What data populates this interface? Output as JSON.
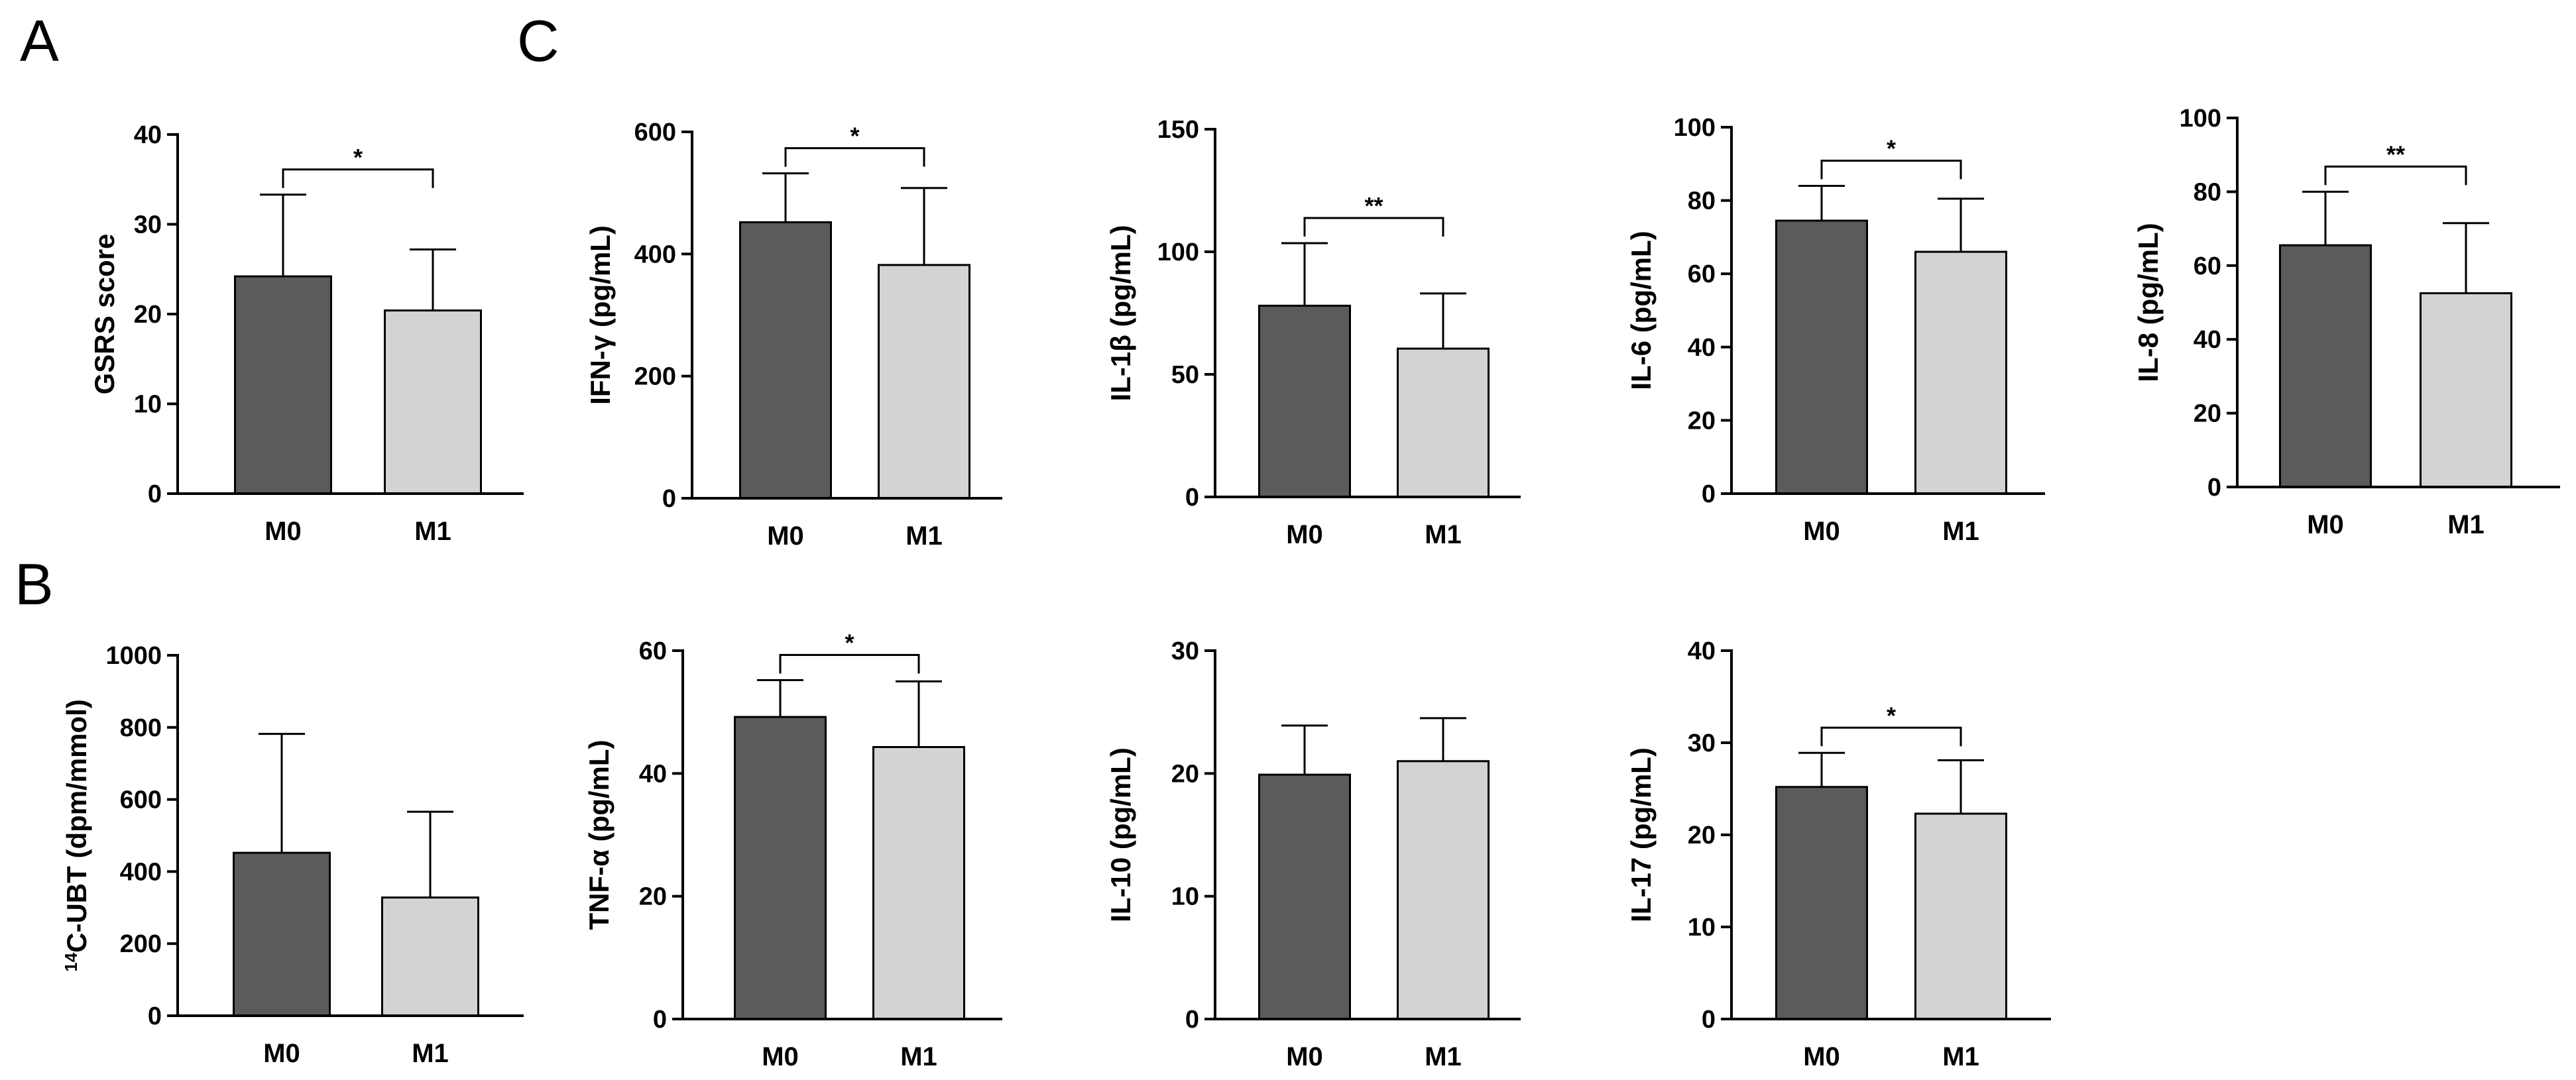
{
  "panel_labels": [
    "A",
    "B",
    "C"
  ],
  "colors": {
    "m0": "#5b5b5b",
    "m1": "#d3d3d3",
    "stroke": "#000000"
  },
  "chart_data": [
    {
      "id": "gsrs",
      "type": "bar",
      "categories": [
        "M0",
        "M1"
      ],
      "values": [
        24.2,
        20.4
      ],
      "errors": [
        9.1,
        6.8
      ],
      "ylabel": "GSRS score",
      "ylim": [
        0,
        40
      ],
      "yticks": [
        "0",
        "10",
        "20",
        "30",
        "40"
      ],
      "significance": "*"
    },
    {
      "id": "ubt",
      "type": "bar",
      "categories": [
        "M0",
        "M1"
      ],
      "values": [
        452,
        328
      ],
      "errors": [
        330,
        238
      ],
      "ylabel": "C-UBT (dpm/mmol)",
      "ylabel_sup": "14",
      "ylim": [
        0,
        1000
      ],
      "yticks": [
        "0",
        "200",
        "400",
        "600",
        "800",
        "1000"
      ],
      "significance": ""
    },
    {
      "id": "ifng",
      "type": "bar",
      "categories": [
        "M0",
        "M1"
      ],
      "values": [
        452,
        382
      ],
      "errors": [
        80,
        126
      ],
      "ylabel": "IFN-γ (pg/mL)",
      "ylim": [
        0,
        600
      ],
      "yticks": [
        "0",
        "200",
        "400",
        "600"
      ],
      "significance": "*"
    },
    {
      "id": "il1b",
      "type": "bar",
      "categories": [
        "M0",
        "M1"
      ],
      "values": [
        78,
        60.5
      ],
      "errors": [
        25.5,
        22.5
      ],
      "ylabel": "IL-1β (pg/mL)",
      "ylim": [
        0,
        150
      ],
      "yticks": [
        "0",
        "50",
        "100",
        "150"
      ],
      "significance": "**"
    },
    {
      "id": "il6",
      "type": "bar",
      "categories": [
        "M0",
        "M1"
      ],
      "values": [
        74.5,
        66
      ],
      "errors": [
        9.5,
        14.5
      ],
      "ylabel": "IL-6 (pg/mL)",
      "ylim": [
        0,
        100
      ],
      "yticks": [
        "0",
        "20",
        "40",
        "60",
        "80",
        "100"
      ],
      "significance": "*"
    },
    {
      "id": "il8",
      "type": "bar",
      "categories": [
        "M0",
        "M1"
      ],
      "values": [
        65.5,
        52.5
      ],
      "errors": [
        14.5,
        19
      ],
      "ylabel": "IL-8 (pg/mL)",
      "ylim": [
        0,
        100
      ],
      "yticks": [
        "0",
        "20",
        "40",
        "60",
        "80",
        "100"
      ],
      "significance": "**"
    },
    {
      "id": "tnfa",
      "type": "bar",
      "categories": [
        "M0",
        "M1"
      ],
      "values": [
        49.2,
        44.3
      ],
      "errors": [
        6,
        10.7
      ],
      "ylabel": "TNF-α (pg/mL)",
      "ylim": [
        0,
        60
      ],
      "yticks": [
        "0",
        "20",
        "40",
        "60"
      ],
      "significance": "*"
    },
    {
      "id": "il10",
      "type": "bar",
      "categories": [
        "M0",
        "M1"
      ],
      "values": [
        19.9,
        21
      ],
      "errors": [
        4,
        3.5
      ],
      "ylabel": "IL-10 (pg/mL)",
      "ylim": [
        0,
        30
      ],
      "yticks": [
        "0",
        "10",
        "20",
        "30"
      ],
      "significance": ""
    },
    {
      "id": "il17",
      "type": "bar",
      "categories": [
        "M0",
        "M1"
      ],
      "values": [
        25.2,
        22.3
      ],
      "errors": [
        3.7,
        5.8
      ],
      "ylabel": "IL-17 (pg/mL)",
      "ylim": [
        0,
        40
      ],
      "yticks": [
        "0",
        "10",
        "20",
        "30",
        "40"
      ],
      "significance": "*"
    }
  ]
}
